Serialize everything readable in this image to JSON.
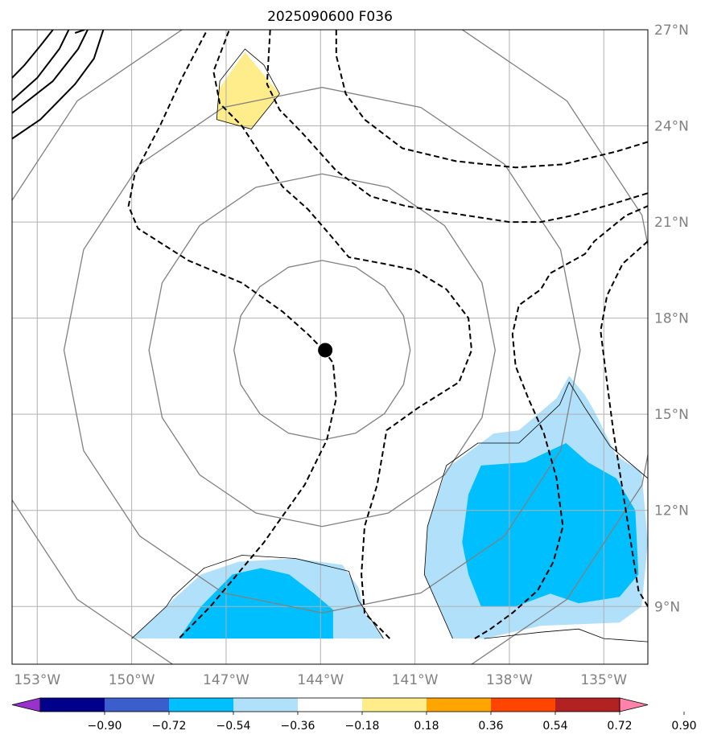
{
  "chart_data": {
    "type": "contour-map",
    "title": "2025090600 F036",
    "projection": "plate-carree",
    "xlim": [
      -153.8,
      -133.6
    ],
    "ylim": [
      7.2,
      27.0
    ],
    "x_ticks": [
      {
        "value": -153,
        "label": "153°W"
      },
      {
        "value": -150,
        "label": "150°W"
      },
      {
        "value": -147,
        "label": "147°W"
      },
      {
        "value": -144,
        "label": "144°W"
      },
      {
        "value": -141,
        "label": "141°W"
      },
      {
        "value": -138,
        "label": "138°W"
      },
      {
        "value": -135,
        "label": "135°W"
      }
    ],
    "y_ticks": [
      {
        "value": 9,
        "label": "9°N"
      },
      {
        "value": 12,
        "label": "12°N"
      },
      {
        "value": 15,
        "label": "15°N"
      },
      {
        "value": 18,
        "label": "18°N"
      },
      {
        "value": 21,
        "label": "21°N"
      },
      {
        "value": 24,
        "label": "24°N"
      },
      {
        "value": 27,
        "label": "27°N"
      }
    ],
    "grid": true,
    "storm_center": {
      "lon": -143.85,
      "lat": 17.0
    },
    "range_rings_center": {
      "lon": -143.95,
      "lat": 17.0
    },
    "range_rings_radius_deg": [
      2.8,
      5.5,
      8.2,
      11.0
    ],
    "colorbar": {
      "levels": [
        -0.9,
        -0.72,
        -0.54,
        -0.36,
        -0.18,
        0.18,
        0.36,
        0.54,
        0.72,
        0.9
      ],
      "tick_labels": [
        "−0.90",
        "−0.72",
        "−0.54",
        "−0.36",
        "−0.18",
        "0.18",
        "0.36",
        "0.54",
        "0.72",
        "0.90"
      ],
      "colors": [
        "#9932cc",
        "#00008b",
        "#3a5fcd",
        "#00bfff",
        "#b0e0fa",
        "#ffffff",
        "#ffec8b",
        "#ffa500",
        "#ff4500",
        "#b22222",
        "#ff82ab"
      ],
      "extend": "both"
    },
    "filled_regions": [
      {
        "level": 0.18,
        "color": "#ffec8b",
        "polygon": [
          [
            -146.4,
            26.3
          ],
          [
            -145.3,
            25.0
          ],
          [
            -146.2,
            23.9
          ],
          [
            -147.3,
            24.2
          ],
          [
            -147.2,
            25.2
          ]
        ]
      },
      {
        "level": -0.18,
        "color": "#b0e0fa",
        "polygon": [
          [
            -150.0,
            8.0
          ],
          [
            -149.1,
            8.8
          ],
          [
            -148.7,
            9.2
          ],
          [
            -147.8,
            10.0
          ],
          [
            -146.6,
            10.4
          ],
          [
            -144.8,
            10.5
          ],
          [
            -143.3,
            10.3
          ],
          [
            -142.8,
            9.6
          ],
          [
            -142.6,
            8.8
          ],
          [
            -142.0,
            8.0
          ]
        ]
      },
      {
        "level": -0.36,
        "color": "#00bfff",
        "polygon": [
          [
            -148.5,
            8.0
          ],
          [
            -147.8,
            9.0
          ],
          [
            -146.8,
            10.0
          ],
          [
            -145.9,
            10.2
          ],
          [
            -145.0,
            10.0
          ],
          [
            -144.2,
            9.4
          ],
          [
            -143.6,
            8.9
          ],
          [
            -143.6,
            8.0
          ]
        ]
      },
      {
        "level": -0.18,
        "color": "#b0e0fa",
        "polygon": [
          [
            -139.8,
            8.0
          ],
          [
            -140.7,
            10.0
          ],
          [
            -140.6,
            11.5
          ],
          [
            -140.0,
            13.3
          ],
          [
            -138.5,
            14.4
          ],
          [
            -137.7,
            14.5
          ],
          [
            -136.5,
            15.5
          ],
          [
            -136.1,
            16.2
          ],
          [
            -135.6,
            15.6
          ],
          [
            -135.3,
            15.1
          ],
          [
            -134.6,
            13.7
          ],
          [
            -133.8,
            13.2
          ],
          [
            -133.6,
            11.0
          ],
          [
            -133.8,
            9.0
          ],
          [
            -134.5,
            8.5
          ],
          [
            -137.0,
            8.4
          ],
          [
            -138.8,
            8.0
          ]
        ]
      },
      {
        "level": -0.36,
        "color": "#00bfff",
        "polygon": [
          [
            -139.3,
            12.5
          ],
          [
            -139.5,
            11.0
          ],
          [
            -139.3,
            10.0
          ],
          [
            -138.9,
            9.0
          ],
          [
            -137.8,
            9.0
          ],
          [
            -136.7,
            9.4
          ],
          [
            -135.8,
            9.1
          ],
          [
            -134.5,
            9.3
          ],
          [
            -133.9,
            10.0
          ],
          [
            -134.0,
            12.0
          ],
          [
            -134.6,
            13.0
          ],
          [
            -135.5,
            13.5
          ],
          [
            -136.2,
            14.1
          ],
          [
            -137.5,
            13.5
          ],
          [
            -138.9,
            13.4
          ]
        ]
      }
    ],
    "contours_dashed": [
      [
        [
          -143.9,
          17.0
        ],
        [
          -143.6,
          16.6
        ],
        [
          -143.5,
          15.5
        ],
        [
          -143.8,
          14.2
        ],
        [
          -144.5,
          12.8
        ],
        [
          -145.8,
          11.0
        ],
        [
          -147.5,
          9.0
        ],
        [
          -148.5,
          8.0
        ]
      ],
      [
        [
          -143.9,
          17.0
        ],
        [
          -144.4,
          17.5
        ],
        [
          -145.2,
          18.2
        ],
        [
          -146.5,
          19.1
        ],
        [
          -148.2,
          19.8
        ],
        [
          -149.8,
          20.8
        ],
        [
          -150.1,
          21.5
        ],
        [
          -149.9,
          22.5
        ],
        [
          -149.1,
          24.0
        ],
        [
          -148.4,
          25.5
        ],
        [
          -147.6,
          27.0
        ]
      ],
      [
        [
          -141.8,
          8.0
        ],
        [
          -142.6,
          8.8
        ],
        [
          -142.7,
          10.0
        ],
        [
          -142.6,
          11.5
        ],
        [
          -142.2,
          12.8
        ],
        [
          -141.9,
          14.5
        ],
        [
          -140.9,
          15.2
        ],
        [
          -139.6,
          16.0
        ],
        [
          -139.2,
          17.0
        ],
        [
          -139.3,
          18.0
        ],
        [
          -140.0,
          18.9
        ],
        [
          -141.0,
          19.5
        ],
        [
          -142.0,
          19.7
        ],
        [
          -143.1,
          19.9
        ],
        [
          -143.7,
          20.6
        ],
        [
          -144.4,
          21.4
        ],
        [
          -145.2,
          22.1
        ],
        [
          -145.9,
          23.1
        ],
        [
          -146.5,
          24.0
        ],
        [
          -147.2,
          24.7
        ],
        [
          -147.4,
          25.7
        ],
        [
          -146.9,
          27.0
        ]
      ],
      [
        [
          -139.1,
          8.0
        ],
        [
          -138.6,
          8.3
        ],
        [
          -137.9,
          8.8
        ],
        [
          -137.1,
          9.5
        ],
        [
          -136.6,
          10.4
        ],
        [
          -136.3,
          11.5
        ],
        [
          -136.5,
          13.0
        ],
        [
          -136.9,
          14.4
        ],
        [
          -137.4,
          15.5
        ],
        [
          -137.8,
          16.5
        ],
        [
          -137.9,
          17.5
        ],
        [
          -137.7,
          18.4
        ],
        [
          -137.0,
          18.9
        ],
        [
          -136.7,
          19.4
        ],
        [
          -135.6,
          20.0
        ],
        [
          -135.3,
          20.4
        ],
        [
          -134.3,
          21.2
        ],
        [
          -133.6,
          21.5
        ]
      ],
      [
        [
          -133.6,
          9.0
        ],
        [
          -133.9,
          9.5
        ],
        [
          -134.3,
          12.0
        ],
        [
          -134.7,
          14.5
        ],
        [
          -134.9,
          16.0
        ],
        [
          -135.1,
          17.6
        ],
        [
          -134.9,
          18.7
        ],
        [
          -134.4,
          19.7
        ],
        [
          -133.6,
          20.4
        ]
      ],
      [
        [
          -145.6,
          27.0
        ],
        [
          -145.7,
          25.3
        ],
        [
          -145.3,
          24.5
        ],
        [
          -144.6,
          23.8
        ],
        [
          -143.5,
          22.6
        ],
        [
          -142.4,
          21.8
        ],
        [
          -141.3,
          21.5
        ],
        [
          -140.0,
          21.3
        ],
        [
          -138.0,
          21.0
        ],
        [
          -137.0,
          21.0
        ],
        [
          -136.0,
          21.2
        ],
        [
          -134.6,
          21.6
        ],
        [
          -133.6,
          21.9
        ]
      ],
      [
        [
          -143.5,
          27.0
        ],
        [
          -143.5,
          26.2
        ],
        [
          -143.2,
          25.0
        ],
        [
          -142.6,
          24.2
        ],
        [
          -141.4,
          23.3
        ],
        [
          -139.7,
          22.9
        ],
        [
          -137.8,
          22.7
        ],
        [
          -136.3,
          22.8
        ],
        [
          -134.6,
          23.2
        ],
        [
          -133.6,
          23.5
        ]
      ]
    ],
    "contours_solid": [
      [
        [
          -153.8,
          25.5
        ],
        [
          -153.4,
          25.9
        ],
        [
          -152.9,
          26.5
        ],
        [
          -152.5,
          27.0
        ]
      ],
      [
        [
          -153.8,
          24.8
        ],
        [
          -153.0,
          25.5
        ],
        [
          -152.3,
          26.4
        ],
        [
          -152.0,
          27.0
        ]
      ],
      [
        [
          -153.8,
          24.4
        ],
        [
          -152.5,
          25.4
        ],
        [
          -151.7,
          26.4
        ],
        [
          -151.4,
          27.0
        ]
      ],
      [
        [
          -153.8,
          23.6
        ],
        [
          -152.9,
          24.2
        ],
        [
          -151.8,
          25.3
        ],
        [
          -151.2,
          26.1
        ],
        [
          -150.9,
          27.0
        ]
      ],
      [
        [
          -151.8,
          26.9
        ],
        [
          -151.5,
          27.0
        ]
      ]
    ],
    "contours_thin": [
      [
        [
          -147.3,
          24.2
        ],
        [
          -146.2,
          23.9
        ],
        [
          -145.3,
          25.0
        ],
        [
          -145.8,
          25.9
        ],
        [
          -146.4,
          26.4
        ],
        [
          -147.2,
          25.4
        ],
        [
          -147.3,
          24.2
        ]
      ],
      [
        [
          -150.0,
          8.0
        ],
        [
          -148.9,
          9.0
        ],
        [
          -148.7,
          9.3
        ],
        [
          -147.7,
          10.2
        ],
        [
          -146.5,
          10.6
        ],
        [
          -144.8,
          10.5
        ],
        [
          -143.1,
          10.1
        ],
        [
          -142.8,
          9.2
        ],
        [
          -142.0,
          8.0
        ]
      ],
      [
        [
          -139.8,
          8.0
        ],
        [
          -140.7,
          10.0
        ],
        [
          -140.6,
          11.5
        ],
        [
          -140.0,
          13.4
        ],
        [
          -139.0,
          14.1
        ],
        [
          -137.7,
          14.1
        ],
        [
          -136.4,
          15.3
        ],
        [
          -136.1,
          16.0
        ],
        [
          -135.6,
          15.2
        ],
        [
          -134.8,
          14.0
        ],
        [
          -133.6,
          13.0
        ]
      ],
      [
        [
          -138.8,
          8.0
        ],
        [
          -137.0,
          8.2
        ],
        [
          -135.8,
          8.3
        ],
        [
          -135.0,
          8.0
        ],
        [
          -133.6,
          7.9
        ]
      ]
    ]
  }
}
